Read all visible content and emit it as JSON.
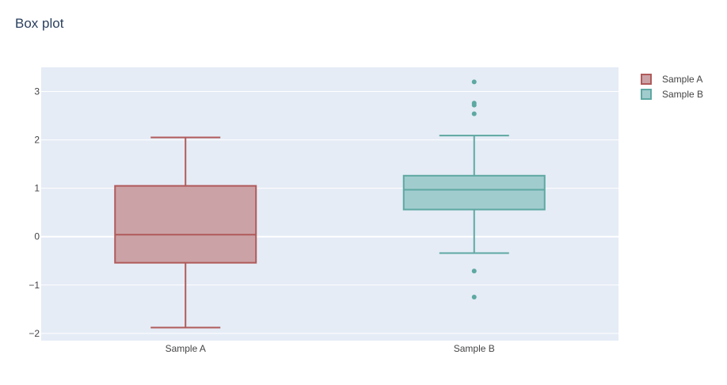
{
  "chart_data": {
    "type": "box",
    "title": "Box plot",
    "xlabel": "",
    "ylabel": "",
    "categories": [
      "Sample A",
      "Sample B"
    ],
    "ylim": [
      -2.15,
      3.5
    ],
    "yticks": [
      -2,
      -1,
      0,
      1,
      2,
      3
    ],
    "ytick_labels": [
      "−2",
      "−1",
      "0",
      "1",
      "2",
      "3"
    ],
    "grid": true,
    "legend_position": "top-right",
    "series": [
      {
        "name": "Sample A",
        "category": "Sample A",
        "min": -1.88,
        "q1": -0.54,
        "median": 0.04,
        "q3": 1.05,
        "max": 2.05,
        "outliers": [],
        "line_color": "#b05a5a",
        "fill_color": "#cba3a7"
      },
      {
        "name": "Sample B",
        "category": "Sample B",
        "min": -0.34,
        "q1": 0.56,
        "median": 0.97,
        "q3": 1.26,
        "max": 2.09,
        "outliers": [
          3.2,
          2.76,
          2.72,
          2.54,
          -0.71,
          -1.25
        ],
        "line_color": "#5ea8a2",
        "fill_color": "#a1ccce"
      }
    ]
  }
}
